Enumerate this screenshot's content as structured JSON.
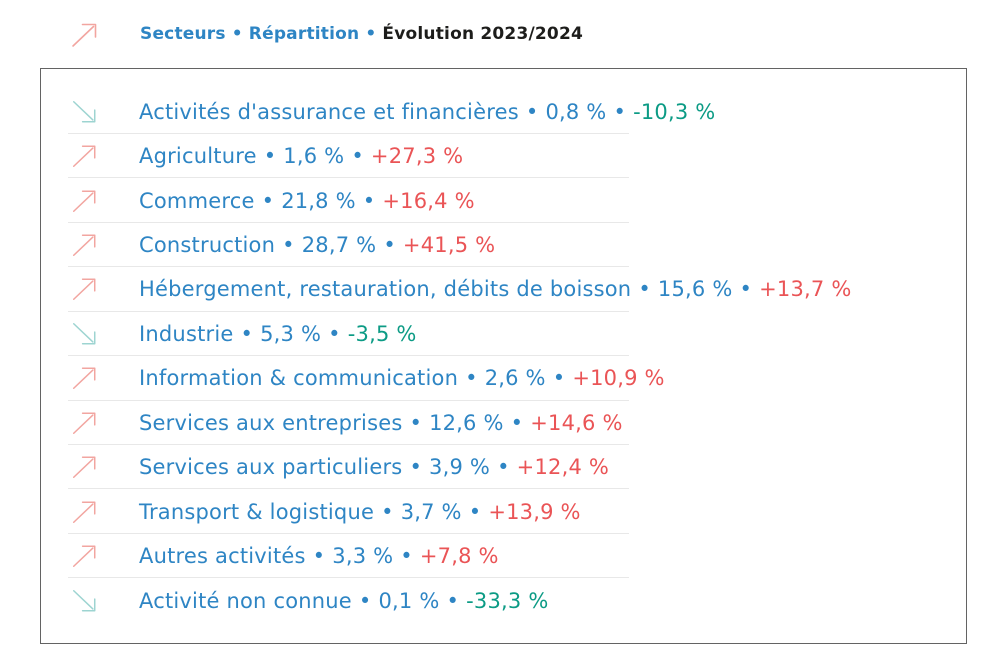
{
  "header": {
    "label_sectors": "Secteurs",
    "bullet": "•",
    "label_distribution": "Répartition",
    "label_evolution": "Évolution 2023/2024"
  },
  "ui": {
    "bullet": "•"
  },
  "colors": {
    "sector_text": "#2e85c4",
    "positive_evolution": "#ea5456",
    "negative_evolution": "#0c9b85",
    "up_arrow": "#f2a5a0",
    "down_arrow": "#9dd4d1",
    "header_dark_text": "#1d1d1b",
    "row_separator": "#e8e8e8",
    "panel_border": "#636363"
  },
  "panel": {
    "rows": [
      {
        "trend": "down",
        "sector": "Activités d'assurance et financières",
        "share": "0,8 %",
        "evolution": "-10,3 %"
      },
      {
        "trend": "up",
        "sector": "Agriculture",
        "share": "1,6 %",
        "evolution": "+27,3 %"
      },
      {
        "trend": "up",
        "sector": "Commerce",
        "share": "21,8 %",
        "evolution": "+16,4 %"
      },
      {
        "trend": "up",
        "sector": "Construction",
        "share": "28,7 %",
        "evolution": "+41,5 %"
      },
      {
        "trend": "up",
        "sector": "Hébergement, restauration, débits de boisson",
        "share": "15,6 %",
        "evolution": "+13,7 %"
      },
      {
        "trend": "down",
        "sector": "Industrie",
        "share": "5,3 %",
        "evolution": "-3,5 %"
      },
      {
        "trend": "up",
        "sector": "Information & communication",
        "share": "2,6 %",
        "evolution": "+10,9 %"
      },
      {
        "trend": "up",
        "sector": "Services aux entreprises",
        "share": "12,6 %",
        "evolution": "+14,6 %"
      },
      {
        "trend": "up",
        "sector": "Services aux particuliers",
        "share": "3,9 %",
        "evolution": "+12,4 %"
      },
      {
        "trend": "up",
        "sector": "Transport & logistique",
        "share": "3,7 %",
        "evolution": "+13,9 %"
      },
      {
        "trend": "up",
        "sector": "Autres activités",
        "share": "3,3 %",
        "evolution": "+7,8 %"
      },
      {
        "trend": "down",
        "sector": "Activité non connue",
        "share": "0,1 %",
        "evolution": "-33,3 %"
      }
    ]
  },
  "chart_data": {
    "type": "table",
    "title": "Secteurs • Répartition • Évolution 2023/2024",
    "columns": [
      "Secteur",
      "Répartition (%)",
      "Évolution 2023/2024 (%)"
    ],
    "rows": [
      [
        "Activités d'assurance et financières",
        0.8,
        -10.3
      ],
      [
        "Agriculture",
        1.6,
        27.3
      ],
      [
        "Commerce",
        21.8,
        16.4
      ],
      [
        "Construction",
        28.7,
        41.5
      ],
      [
        "Hébergement, restauration, débits de boisson",
        15.6,
        13.7
      ],
      [
        "Industrie",
        5.3,
        -3.5
      ],
      [
        "Information & communication",
        2.6,
        10.9
      ],
      [
        "Services aux entreprises",
        12.6,
        14.6
      ],
      [
        "Services aux particuliers",
        3.9,
        12.4
      ],
      [
        "Transport & logistique",
        3.7,
        13.9
      ],
      [
        "Autres activités",
        3.3,
        7.8
      ],
      [
        "Activité non connue",
        0.1,
        -33.3
      ]
    ],
    "notes": "trend arrow up = positive evolution (red), arrow down = negative evolution (teal)"
  }
}
